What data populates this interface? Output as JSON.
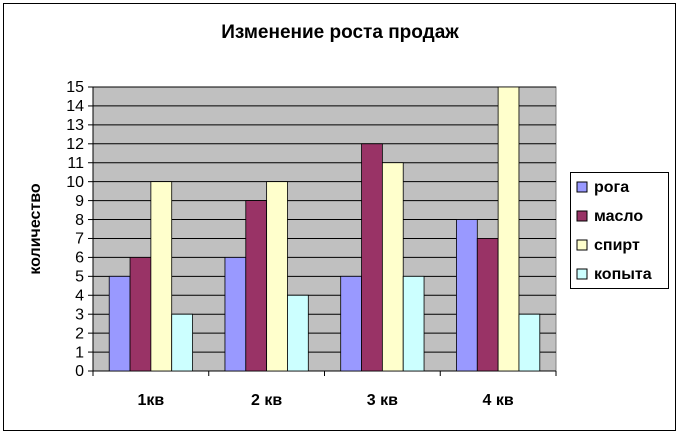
{
  "chart_data": {
    "type": "bar",
    "title": "Изменение роста продаж",
    "y_label": "количество",
    "categories": [
      "1кв",
      "2 кв",
      "3 кв",
      "4 кв"
    ],
    "series": [
      {
        "name": "рога",
        "color": "#9999ff",
        "values": [
          5,
          6,
          5,
          8
        ]
      },
      {
        "name": "масло",
        "color": "#993366",
        "values": [
          6,
          9,
          12,
          7
        ]
      },
      {
        "name": "спирт",
        "color": "#ffffcc",
        "values": [
          10,
          10,
          11,
          15
        ]
      },
      {
        "name": "копыта",
        "color": "#ccffff",
        "values": [
          3,
          4,
          5,
          3
        ]
      }
    ],
    "ylim": [
      0,
      15
    ],
    "yticks": [
      0,
      1,
      2,
      3,
      4,
      5,
      6,
      7,
      8,
      9,
      10,
      11,
      12,
      13,
      14,
      15
    ],
    "grid": true,
    "legend": "right",
    "plot_background": "#c0c0c0"
  }
}
